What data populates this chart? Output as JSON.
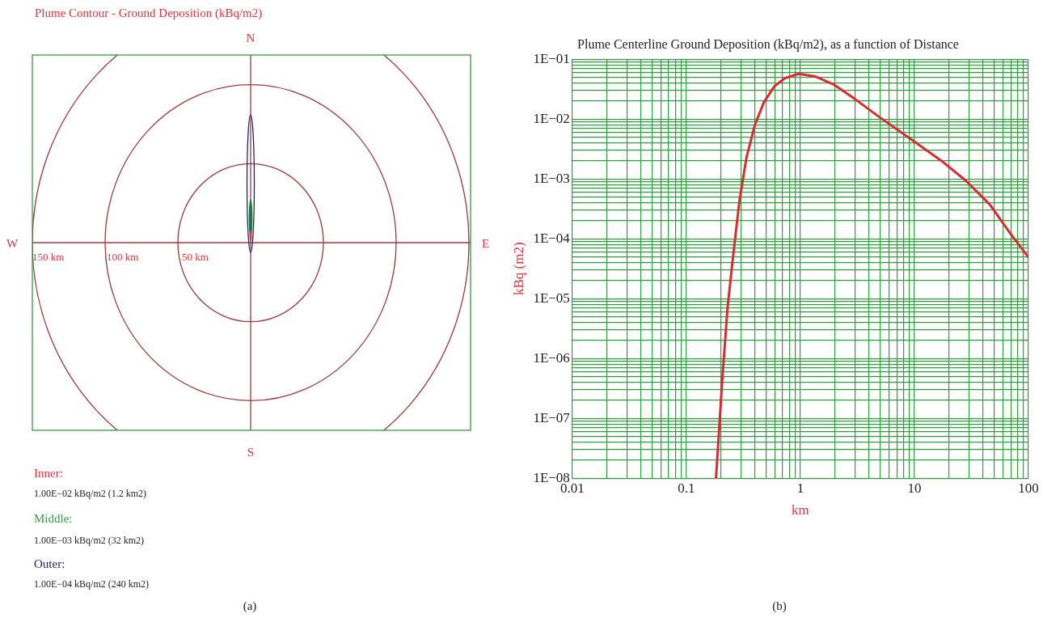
{
  "chart_data": [
    {
      "type": "other",
      "title": "Plume Contour - Ground Deposition (kBq/m2)",
      "annotations": [
        "N",
        "S",
        "W",
        "E",
        "150 km",
        "100 km",
        "50 km",
        "Inner:",
        "1.00E−02 kBq/m2 (1.2 km2)",
        "Middle:",
        "1.00E−03 kBq/m2 (32 km2)",
        "Outer:",
        "1.00E−04 kBq/m2 (240 km2)",
        "(a)"
      ]
    },
    {
      "type": "line",
      "title": "Plume Centerline Ground Deposition (kBq/m2), as a function of Distance",
      "xlabel": "km",
      "ylabel": "kBq (m2)",
      "log": "xy",
      "grid": true,
      "marker": "none",
      "line_style": "solid",
      "xlim": [
        0.01,
        100
      ],
      "xticks": [
        0.01,
        0.1,
        1,
        10,
        100
      ],
      "ylim": [
        1e-08,
        0.1
      ],
      "yticks": [
        {
          "value": 1e-08,
          "label": "1E−08"
        },
        {
          "value": 1e-07,
          "label": "1E−07"
        },
        {
          "value": 1e-06,
          "label": "1E−06"
        },
        {
          "value": 1e-05,
          "label": "1E−05"
        },
        {
          "value": 0.0001,
          "label": "1E−04"
        },
        {
          "value": 0.001,
          "label": "1E−03"
        },
        {
          "value": 0.01,
          "label": "1E−02"
        },
        {
          "value": 0.1,
          "label": "1E−01"
        }
      ],
      "annotations": [
        "(b)"
      ],
      "series": [
        {
          "color": "#d92b30",
          "x": [
            0.182,
            0.206,
            0.229,
            0.254,
            0.292,
            0.337,
            0.4,
            0.478,
            0.59,
            0.73,
            0.97,
            1.37,
            1.95,
            2.97,
            4.86,
            9.2,
            17.3,
            28.3,
            46,
            70,
            100
          ],
          "values": [
            1e-08,
            4.1e-07,
            6.6e-06,
            4.2e-05,
            0.00043,
            0.0023,
            0.0081,
            0.019,
            0.035,
            0.048,
            0.057,
            0.051,
            0.038,
            0.022,
            0.011,
            0.0047,
            0.002,
            0.00093,
            0.00037,
            0.00012,
            4.9e-05
          ]
        }
      ]
    }
  ]
}
